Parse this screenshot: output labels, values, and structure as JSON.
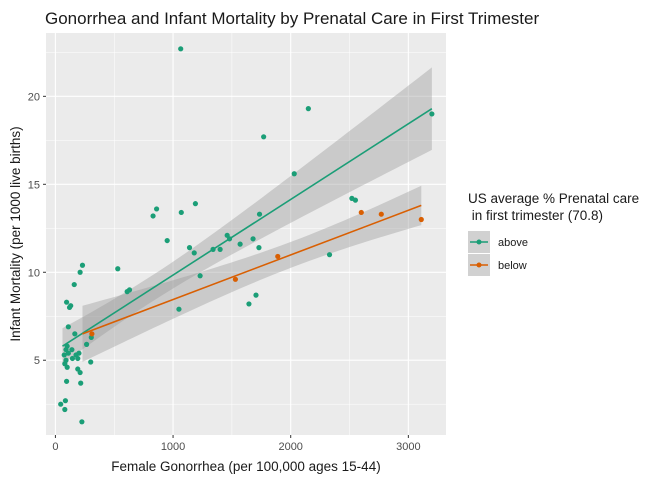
{
  "chart_data": {
    "type": "scatter",
    "title": "Gonorrhea and Infant Mortality by Prenatal Care in First Trimester",
    "xlabel": "Female Gonorrhea (per 100,000 ages 15-44)",
    "ylabel": "Infant Mortality (per 1000 live births)",
    "xlim": [
      -80,
      3320
    ],
    "ylim": [
      0.75,
      23.6
    ],
    "x_ticks": [
      0,
      1000,
      2000,
      3000
    ],
    "y_ticks": [
      5,
      10,
      15,
      20
    ],
    "grid": true,
    "legend": {
      "title_line1": "US average % Prenatal care",
      "title_line2": " in first trimester (70.8)",
      "position": "right",
      "entries": [
        "above",
        "below"
      ]
    },
    "colors": {
      "above": "#1b9e77",
      "below": "#d95f02",
      "panel": "#ebebeb",
      "ribbon": "#999999"
    },
    "series": [
      {
        "name": "above",
        "points": [
          [
            45,
            2.5
          ],
          [
            80,
            2.2
          ],
          [
            85,
            2.7
          ],
          [
            95,
            3.8
          ],
          [
            80,
            4.8
          ],
          [
            100,
            4.6
          ],
          [
            90,
            5.0
          ],
          [
            75,
            5.3
          ],
          [
            90,
            5.6
          ],
          [
            100,
            5.8
          ],
          [
            110,
            5.4
          ],
          [
            95,
            8.3
          ],
          [
            120,
            8.0
          ],
          [
            130,
            8.1
          ],
          [
            110,
            6.9
          ],
          [
            140,
            5.6
          ],
          [
            145,
            5.1
          ],
          [
            175,
            5.3
          ],
          [
            190,
            5.1
          ],
          [
            200,
            5.4
          ],
          [
            165,
            6.5
          ],
          [
            160,
            9.3
          ],
          [
            190,
            4.5
          ],
          [
            210,
            4.3
          ],
          [
            215,
            3.7
          ],
          [
            225,
            1.5
          ],
          [
            230,
            10.4
          ],
          [
            210,
            10.0
          ],
          [
            265,
            5.9
          ],
          [
            300,
            4.9
          ],
          [
            305,
            6.3
          ],
          [
            530,
            10.2
          ],
          [
            610,
            8.9
          ],
          [
            630,
            9.0
          ],
          [
            830,
            13.2
          ],
          [
            860,
            13.6
          ],
          [
            950,
            11.8
          ],
          [
            1050,
            7.9
          ],
          [
            1065,
            22.7
          ],
          [
            1070,
            13.4
          ],
          [
            1140,
            11.4
          ],
          [
            1180,
            11.1
          ],
          [
            1190,
            13.9
          ],
          [
            1230,
            9.8
          ],
          [
            1340,
            11.3
          ],
          [
            1400,
            11.3
          ],
          [
            1460,
            12.1
          ],
          [
            1480,
            11.9
          ],
          [
            1570,
            11.6
          ],
          [
            1645,
            8.2
          ],
          [
            1680,
            11.9
          ],
          [
            1705,
            8.7
          ],
          [
            1730,
            11.4
          ],
          [
            1735,
            13.3
          ],
          [
            1770,
            17.7
          ],
          [
            2030,
            15.6
          ],
          [
            2150,
            19.3
          ],
          [
            2330,
            11.0
          ],
          [
            2520,
            14.2
          ],
          [
            2550,
            14.1
          ],
          [
            3200,
            19.0
          ]
        ],
        "fit_line": [
          [
            60,
            5.8
          ],
          [
            3200,
            19.3
          ]
        ]
      },
      {
        "name": "below",
        "points": [
          [
            310,
            6.5
          ],
          [
            1530,
            9.6
          ],
          [
            1890,
            10.9
          ],
          [
            2600,
            13.4
          ],
          [
            2770,
            13.3
          ],
          [
            3110,
            13.0
          ]
        ],
        "fit_line": [
          [
            230,
            6.5
          ],
          [
            3110,
            13.8
          ]
        ]
      }
    ]
  }
}
